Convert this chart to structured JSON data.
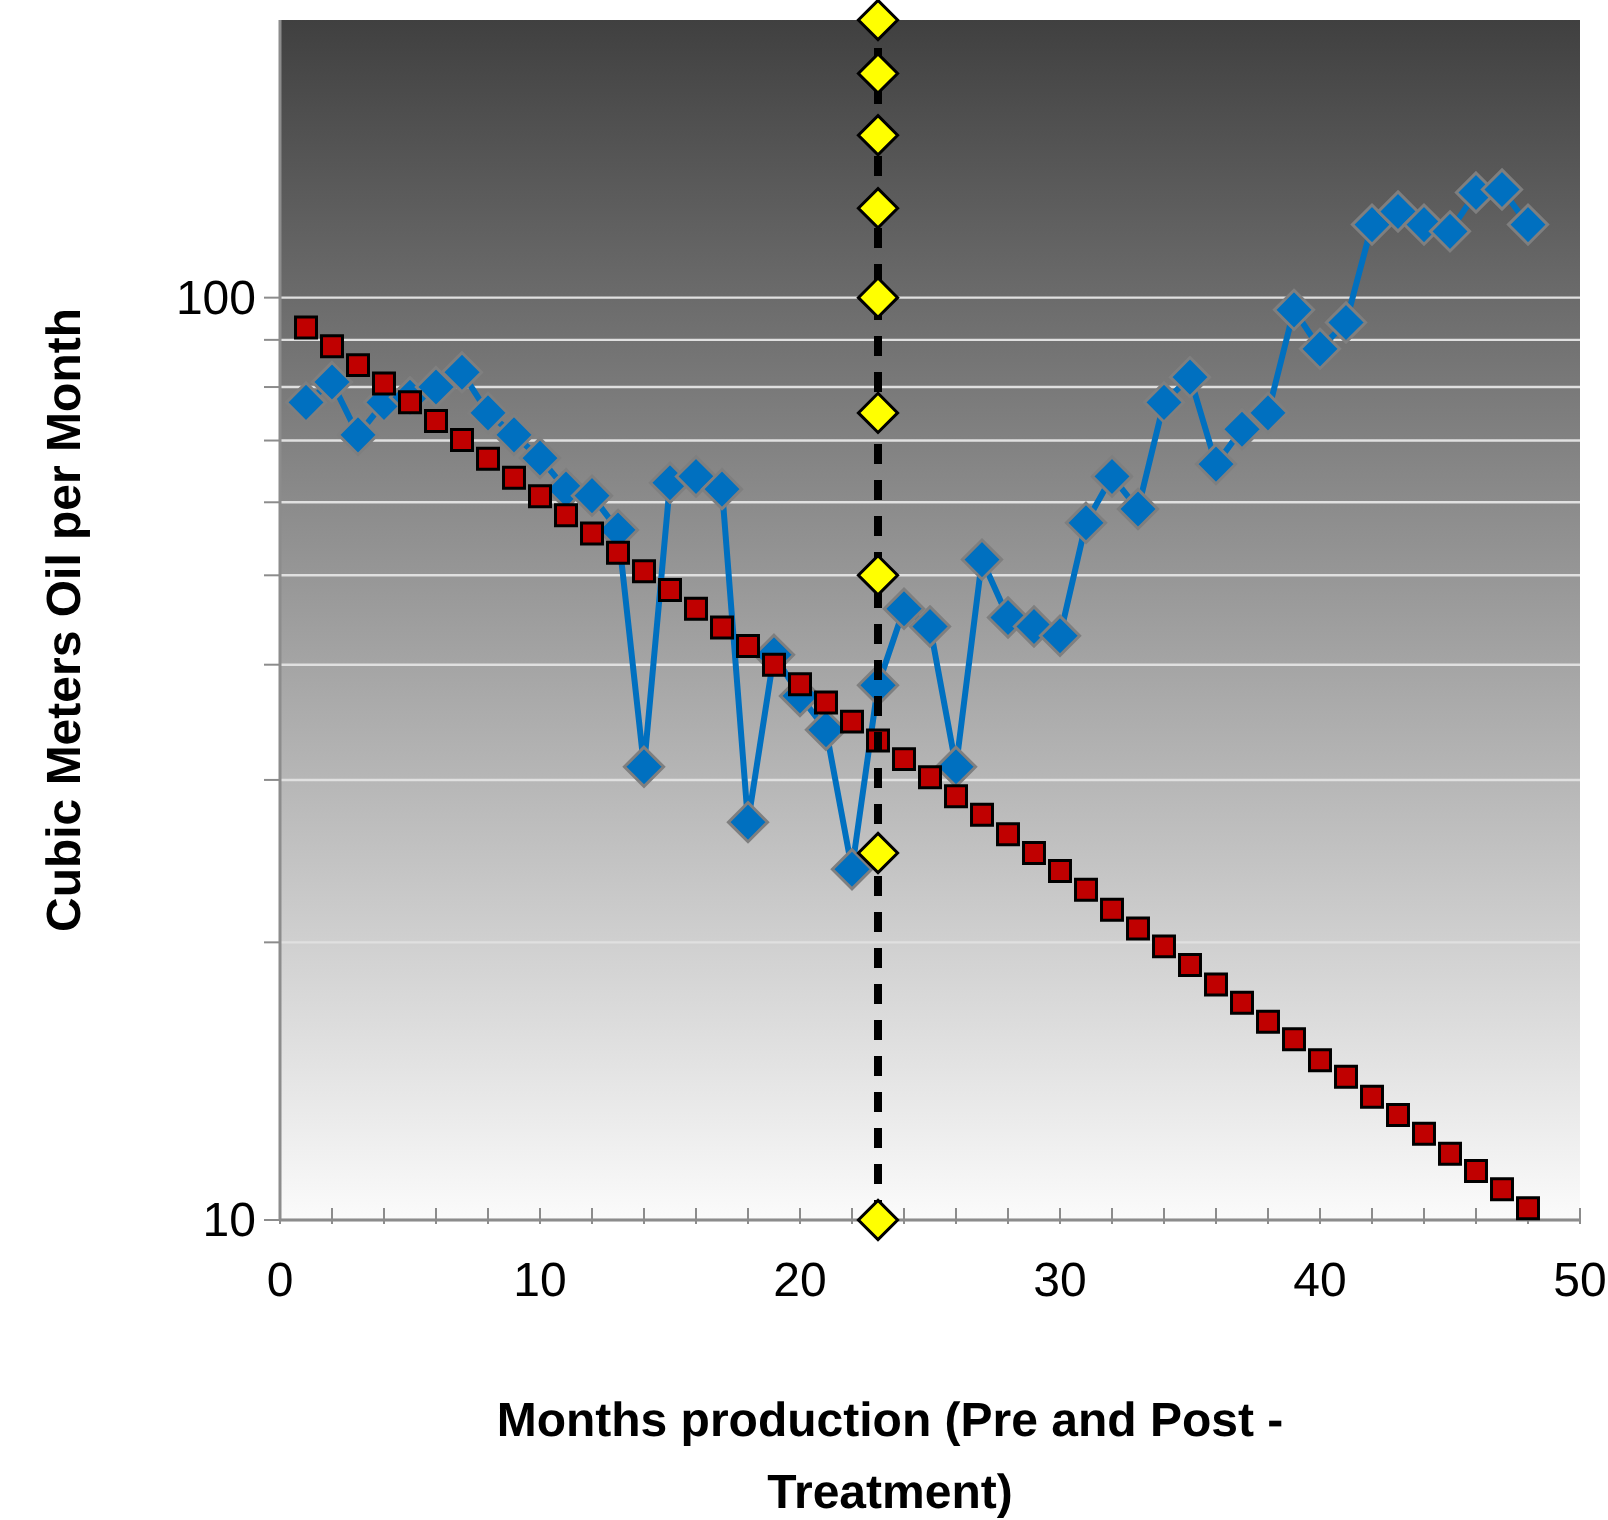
{
  "chart_data": {
    "type": "line",
    "xlabel": "Months production (Pre and Post - Treatment)",
    "ylabel": "Cubic Meters Oil per Month",
    "log": "y",
    "grid": "y",
    "xlim": [
      0,
      50
    ],
    "ylim": [
      10,
      200
    ],
    "xticks": [
      0,
      {
        "value": 2,
        "label": null
      },
      {
        "value": 4,
        "label": null
      },
      {
        "value": 6,
        "label": null
      },
      {
        "value": 8,
        "label": null
      },
      10,
      {
        "value": 12,
        "label": null
      },
      {
        "value": 14,
        "label": null
      },
      {
        "value": 16,
        "label": null
      },
      {
        "value": 18,
        "label": null
      },
      20,
      {
        "value": 22,
        "label": null
      },
      {
        "value": 24,
        "label": null
      },
      {
        "value": 26,
        "label": null
      },
      {
        "value": 28,
        "label": null
      },
      30,
      {
        "value": 32,
        "label": null
      },
      {
        "value": 34,
        "label": null
      },
      {
        "value": 36,
        "label": null
      },
      {
        "value": 38,
        "label": null
      },
      40,
      {
        "value": 42,
        "label": null
      },
      {
        "value": 44,
        "label": null
      },
      {
        "value": 46,
        "label": null
      },
      {
        "value": 48,
        "label": null
      },
      50
    ],
    "yticks": [
      10,
      {
        "value": 20,
        "label": null
      },
      {
        "value": 30,
        "label": null
      },
      {
        "value": 40,
        "label": null
      },
      {
        "value": 50,
        "label": null
      },
      {
        "value": 60,
        "label": null
      },
      {
        "value": 70,
        "label": null
      },
      {
        "value": 80,
        "label": null
      },
      {
        "value": 90,
        "label": null
      },
      100
    ],
    "series": [
      {
        "marker": "diamond",
        "line_style": "solid",
        "color": "#0070c0",
        "x": [
          1,
          2,
          3,
          4,
          5,
          6,
          7,
          8,
          9,
          10,
          11,
          12,
          13,
          14,
          15,
          16,
          17,
          18,
          19,
          20,
          21,
          22,
          23,
          24,
          25,
          26,
          27,
          28,
          29,
          30,
          31,
          32,
          33,
          34,
          35,
          36,
          37,
          38,
          39,
          40,
          41,
          42,
          43,
          44,
          45,
          46,
          47,
          48
        ],
        "values": [
          77,
          81,
          71,
          77,
          78,
          80,
          83,
          75,
          71,
          67,
          62,
          61,
          56,
          31,
          63,
          64,
          62,
          27,
          41,
          37,
          34,
          24,
          38,
          46,
          44,
          31,
          52,
          45,
          44,
          43,
          57,
          64,
          59,
          77,
          82,
          66,
          72,
          75,
          97,
          88,
          94,
          120,
          124,
          120,
          118,
          130,
          131,
          120
        ]
      },
      {
        "type": "scatter",
        "marker": "square",
        "color": "#c00000",
        "x": [
          1,
          2,
          3,
          4,
          5,
          6,
          7,
          8,
          9,
          10,
          11,
          12,
          13,
          14,
          15,
          16,
          17,
          18,
          19,
          20,
          21,
          22,
          23,
          24,
          25,
          26,
          27,
          28,
          29,
          30,
          31,
          32,
          33,
          34,
          35,
          36,
          37,
          38,
          39,
          40,
          41,
          42,
          43,
          44,
          45,
          46,
          47,
          48
        ],
        "values": [
          92.8,
          88.6,
          84.5,
          80.7,
          77.0,
          73.5,
          70.1,
          66.9,
          63.8,
          60.9,
          58.1,
          55.5,
          52.9,
          50.5,
          48.2,
          46.0,
          43.9,
          41.9,
          40.0,
          38.1,
          36.4,
          34.7,
          33.1,
          31.6,
          30.2,
          28.8,
          27.5,
          26.2,
          25.0,
          23.9,
          22.8,
          21.7,
          20.7,
          19.8,
          18.9,
          18.0,
          17.2,
          16.4,
          15.7,
          14.9,
          14.3,
          13.6,
          13.0,
          12.4,
          11.8,
          11.3,
          10.8,
          10.3
        ]
      },
      {
        "marker": "diamond",
        "line_style": "dashed",
        "color": "#ffff00",
        "x": [
          23,
          23,
          23,
          23,
          23,
          23,
          23,
          23,
          23
        ],
        "values": [
          10,
          25,
          50,
          75,
          100,
          125,
          150,
          175,
          200
        ]
      }
    ]
  }
}
